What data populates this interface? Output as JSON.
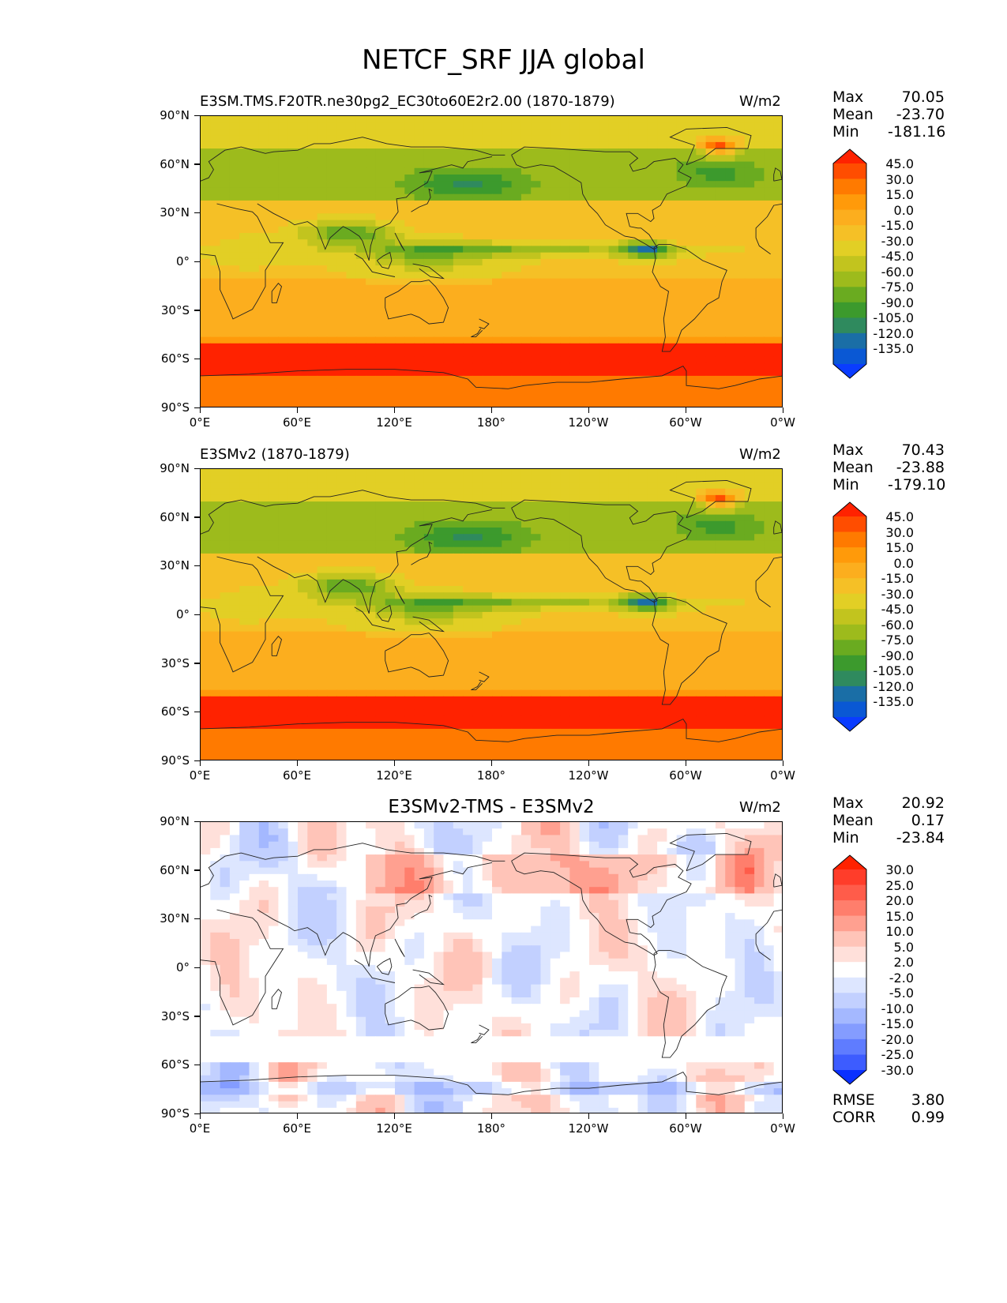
{
  "title": "NETCF_SRF JJA global",
  "y_tick_labels": [
    "90°N",
    "60°N",
    "30°N",
    "0°",
    "30°S",
    "60°S",
    "90°S"
  ],
  "x_tick_labels": [
    "0°E",
    "60°E",
    "120°E",
    "180°",
    "120°W",
    "60°W",
    "0°W"
  ],
  "panels": [
    {
      "title_left": "E3SM.TMS.F20TR.ne30pg2_EC30to60E2r2.00 (1870-1879)",
      "title_center": "",
      "units": "W/m2",
      "stats": [
        {
          "label": "Max",
          "value": "70.05"
        },
        {
          "label": "Mean",
          "value": "-23.70"
        },
        {
          "label": "Min",
          "value": "-181.16"
        }
      ],
      "colorbar_labels": [
        "45.0",
        "30.0",
        "15.0",
        "0.0",
        "-15.0",
        "-30.0",
        "-45.0",
        "-60.0",
        "-75.0",
        "-90.0",
        "-105.0",
        "-120.0",
        "-135.0"
      ],
      "colorbar_colors": [
        "#ff2200",
        "#ff4d00",
        "#ff7a00",
        "#ff9a0a",
        "#fcae1e",
        "#f5c026",
        "#e2cf25",
        "#c2c41e",
        "#9dbb1c",
        "#6aab20",
        "#3c9a2d",
        "#2f8a5e",
        "#1a6ea6",
        "#0a58d4",
        "#0a3cff"
      ]
    },
    {
      "title_left": "E3SMv2 (1870-1879)",
      "title_center": "",
      "units": "W/m2",
      "stats": [
        {
          "label": "Max",
          "value": "70.43"
        },
        {
          "label": "Mean",
          "value": "-23.88"
        },
        {
          "label": "Min",
          "value": "-179.10"
        }
      ],
      "colorbar_labels": [
        "45.0",
        "30.0",
        "15.0",
        "0.0",
        "-15.0",
        "-30.0",
        "-45.0",
        "-60.0",
        "-75.0",
        "-90.0",
        "-105.0",
        "-120.0",
        "-135.0"
      ],
      "colorbar_colors": [
        "#ff2200",
        "#ff4d00",
        "#ff7a00",
        "#ff9a0a",
        "#fcae1e",
        "#f5c026",
        "#e2cf25",
        "#c2c41e",
        "#9dbb1c",
        "#6aab20",
        "#3c9a2d",
        "#2f8a5e",
        "#1a6ea6",
        "#0a58d4",
        "#0a3cff"
      ]
    },
    {
      "title_left": "",
      "title_center": "E3SMv2-TMS - E3SMv2",
      "units": "W/m2",
      "stats": [
        {
          "label": "Max",
          "value": "20.92"
        },
        {
          "label": "Mean",
          "value": "0.17"
        },
        {
          "label": "Min",
          "value": "-23.84"
        }
      ],
      "colorbar_labels": [
        "30.0",
        "25.0",
        "20.0",
        "15.0",
        "10.0",
        "5.0",
        "2.0",
        "-2.0",
        "-5.0",
        "-10.0",
        "-15.0",
        "-20.0",
        "-25.0",
        "-30.0"
      ],
      "colorbar_colors": [
        "#ff2200",
        "#ff3d2a",
        "#ff5c4a",
        "#ff7e6c",
        "#ffa090",
        "#ffc4b8",
        "#ffe0da",
        "#ffffff",
        "#dde6ff",
        "#c2d0ff",
        "#a4b8ff",
        "#849cff",
        "#5f7cff",
        "#3d5cff",
        "#0a30ff"
      ],
      "extra_stats": [
        {
          "label": "RMSE",
          "value": "3.80"
        },
        {
          "label": "CORR",
          "value": "0.99"
        }
      ]
    }
  ]
}
